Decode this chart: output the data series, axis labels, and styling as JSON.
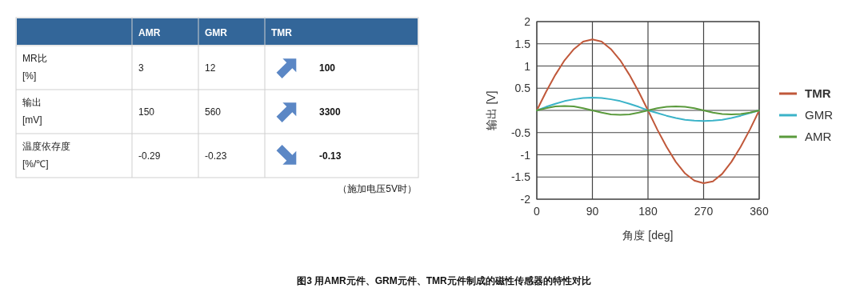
{
  "chart_data": [
    {
      "type": "other",
      "categories": [
        "AMR",
        "GMR",
        "TMR"
      ],
      "y_categories": [
        "MR比\n[%]",
        "输出\n[mV]",
        "温度依存度\n[%/℃]"
      ],
      "cell_labels": [
        [
          "3",
          "12",
          "100"
        ],
        [
          "150",
          "560",
          "3300"
        ],
        [
          "-0.29",
          "-0.23",
          "-0.13"
        ]
      ],
      "annotations": [
        "（施加电压5V时）"
      ]
    },
    {
      "type": "line",
      "xlabel": "角度 [deg]",
      "ylabel": "输出 [V]",
      "x": [
        0,
        15,
        30,
        45,
        60,
        75,
        90,
        105,
        120,
        135,
        150,
        165,
        180,
        195,
        210,
        225,
        240,
        255,
        270,
        285,
        300,
        315,
        330,
        345,
        360
      ],
      "series": [
        {
          "name": "TMR",
          "color": "#c0583a",
          "values": [
            0,
            0.42,
            0.8,
            1.13,
            1.38,
            1.55,
            1.6,
            1.55,
            1.38,
            1.13,
            0.8,
            0.42,
            0,
            -0.43,
            -0.82,
            -1.16,
            -1.42,
            -1.58,
            -1.64,
            -1.6,
            -1.43,
            -1.16,
            -0.82,
            -0.43,
            0
          ]
        },
        {
          "name": "GMR",
          "color": "#3bb3c8",
          "values": [
            0,
            0.08,
            0.15,
            0.21,
            0.25,
            0.28,
            0.29,
            0.28,
            0.25,
            0.21,
            0.15,
            0.08,
            0,
            -0.06,
            -0.12,
            -0.17,
            -0.21,
            -0.23,
            -0.24,
            -0.23,
            -0.21,
            -0.17,
            -0.12,
            -0.06,
            0
          ]
        },
        {
          "name": "AMR",
          "color": "#5a9a3c",
          "values": [
            0,
            0.05,
            0.09,
            0.1,
            0.09,
            0.05,
            0,
            -0.05,
            -0.09,
            -0.1,
            -0.09,
            -0.05,
            0,
            0.05,
            0.08,
            0.09,
            0.08,
            0.05,
            0,
            -0.05,
            -0.08,
            -0.09,
            -0.08,
            -0.05,
            0
          ]
        }
      ],
      "xlim": [
        0,
        360
      ],
      "ylim": [
        -2,
        2
      ],
      "xticks": [
        0,
        90,
        180,
        270,
        360
      ],
      "yticks": [
        -2,
        -1.5,
        -1,
        -0.5,
        {
          "value": 0,
          "label": null
        },
        0.5,
        1,
        1.5,
        2
      ],
      "grid": true,
      "legend": "right",
      "marker": "none",
      "line_style": "solid",
      "annotations": [
        "图3 用AMR元件、GRM元件、TMR元件制成的磁性传感器的特性对比"
      ]
    }
  ]
}
